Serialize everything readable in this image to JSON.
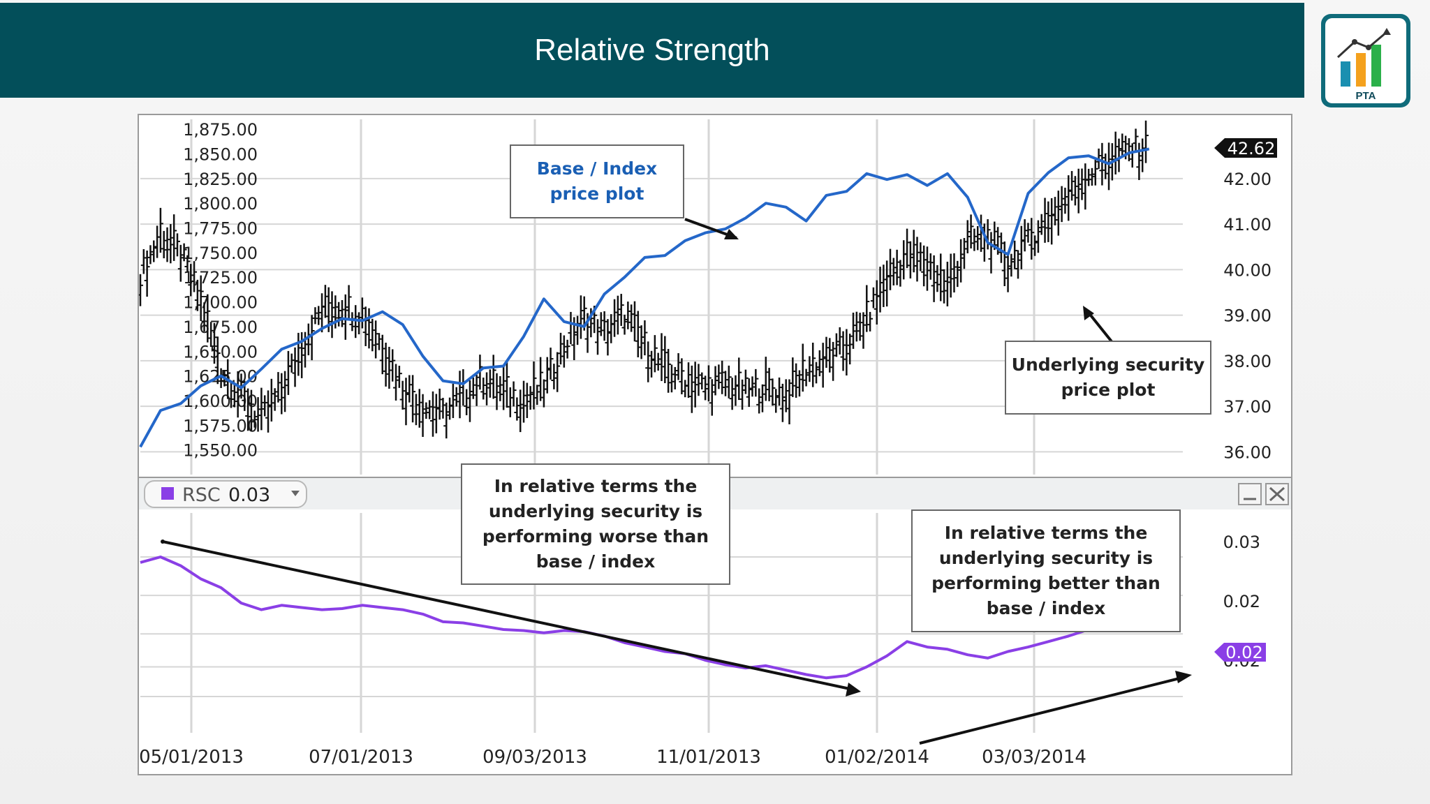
{
  "slide": {
    "title": "Relative Strength",
    "logo_text": "PTA"
  },
  "callouts": {
    "base_index": [
      "Base / Index",
      "price plot"
    ],
    "underlying": [
      "Underlying security",
      "price plot"
    ],
    "worse": [
      "In relative terms the",
      "underlying security is",
      "performing  worse than",
      "base / index"
    ],
    "better": [
      "In relative terms the",
      "underlying security is",
      "performing  better than",
      "base / index"
    ]
  },
  "colors": {
    "title_bg": "#034f5a",
    "base_index_line": "#2467c9",
    "underlying_bars": "#111111",
    "rsc_line": "#8a3fe6",
    "badge_dark": "#111111",
    "badge_purple": "#8a3fe6"
  },
  "chart_data": [
    {
      "type": "line",
      "title": "",
      "x_tick_labels": [
        "05/01/2013",
        "07/01/2013",
        "09/03/2013",
        "11/01/2013",
        "01/02/2014",
        "03/03/2014"
      ],
      "left_axis": {
        "ticks": [
          "1,875.00",
          "1,850.00",
          "1,825.00",
          "1,800.00",
          "1,775.00",
          "1,750.00",
          "1,725.00",
          "1,700.00",
          "1,675.00",
          "1,650.00",
          "1,625.00",
          "1,600.00",
          "1,575.00",
          "1,550.00"
        ],
        "range": [
          1525,
          1885
        ]
      },
      "right_axis": {
        "ticks": [
          "42.00",
          "41.00",
          "40.00",
          "39.00",
          "38.00",
          "37.00",
          "36.00"
        ],
        "range": [
          35.5,
          43.3
        ],
        "last_value_label": "42.62"
      },
      "grid": true,
      "series": [
        {
          "name": "Base / Index price plot",
          "axis": "left",
          "render": "line",
          "x": [
            0,
            6,
            12,
            18,
            24,
            30,
            36,
            42,
            48,
            54,
            60,
            66,
            72,
            78,
            84,
            90,
            96,
            102,
            108,
            114,
            120,
            126,
            132,
            138,
            144,
            150,
            156,
            162,
            168,
            174,
            180,
            186,
            192,
            198,
            204,
            210,
            216,
            222,
            228,
            234,
            240,
            246,
            252,
            258,
            264,
            270,
            276,
            282,
            288,
            294,
            300
          ],
          "values": [
            1553,
            1590,
            1597,
            1615,
            1625,
            1613,
            1632,
            1652,
            1660,
            1673,
            1683,
            1681,
            1690,
            1677,
            1645,
            1620,
            1617,
            1633,
            1635,
            1665,
            1703,
            1680,
            1675,
            1708,
            1725,
            1745,
            1747,
            1762,
            1770,
            1774,
            1785,
            1800,
            1796,
            1782,
            1808,
            1812,
            1830,
            1824,
            1829,
            1818,
            1830,
            1806,
            1760,
            1748,
            1810,
            1831,
            1846,
            1848,
            1840,
            1851,
            1855
          ]
        },
        {
          "name": "Underlying security price plot",
          "axis": "right",
          "render": "ohlc",
          "x": [
            0,
            6,
            12,
            18,
            24,
            30,
            36,
            42,
            48,
            54,
            60,
            66,
            72,
            78,
            84,
            90,
            96,
            102,
            108,
            114,
            120,
            126,
            132,
            138,
            144,
            150,
            156,
            162,
            168,
            174,
            180,
            186,
            192,
            198,
            204,
            210,
            216,
            222,
            228,
            234,
            240,
            246,
            252,
            258,
            264,
            270,
            276,
            282,
            288,
            294,
            300
          ],
          "values": [
            39.8,
            40.8,
            40.3,
            39.3,
            37.8,
            37.2,
            36.7,
            37.3,
            38.3,
            39.1,
            39.2,
            39.0,
            38.3,
            37.4,
            37.0,
            36.8,
            37.2,
            37.6,
            37.3,
            37.1,
            37.4,
            38.3,
            38.9,
            38.6,
            39.0,
            38.3,
            37.8,
            37.6,
            37.4,
            37.5,
            37.3,
            37.4,
            37.2,
            37.8,
            38.0,
            38.3,
            38.9,
            39.8,
            40.3,
            40.1,
            39.6,
            40.6,
            40.7,
            40.1,
            40.6,
            41.1,
            41.6,
            42.1,
            42.4,
            42.6,
            42.62
          ]
        }
      ]
    },
    {
      "type": "line",
      "title": "",
      "legend": {
        "label": "RSC",
        "value": "0.03"
      },
      "axis": {
        "ticks": [
          "0.03",
          "0.02",
          "0.02"
        ],
        "range": [
          0.015,
          0.035
        ],
        "last_value_label": "0.02"
      },
      "grid": true,
      "series": [
        {
          "name": "RSC",
          "x": [
            0,
            6,
            12,
            18,
            24,
            30,
            36,
            42,
            48,
            54,
            60,
            66,
            72,
            78,
            84,
            90,
            96,
            102,
            108,
            114,
            120,
            126,
            132,
            138,
            144,
            150,
            156,
            162,
            168,
            174,
            180,
            186,
            192,
            198,
            204,
            210,
            216,
            222,
            228,
            234,
            240,
            246,
            252,
            258,
            264,
            270,
            276,
            282,
            288,
            294,
            300
          ],
          "values": [
            0.0305,
            0.031,
            0.0302,
            0.029,
            0.0282,
            0.0268,
            0.0262,
            0.0266,
            0.0264,
            0.0262,
            0.0263,
            0.0266,
            0.0264,
            0.0262,
            0.0258,
            0.0251,
            0.025,
            0.0247,
            0.0244,
            0.0243,
            0.0241,
            0.0243,
            0.0242,
            0.0238,
            0.0232,
            0.0228,
            0.0224,
            0.0222,
            0.0216,
            0.0212,
            0.0209,
            0.0211,
            0.0207,
            0.0203,
            0.02,
            0.0202,
            0.021,
            0.022,
            0.0233,
            0.0228,
            0.0226,
            0.0221,
            0.0218,
            0.0224,
            0.0228,
            0.0233,
            0.0238,
            0.0244,
            0.0248,
            0.0245,
            0.0244
          ]
        }
      ]
    }
  ]
}
